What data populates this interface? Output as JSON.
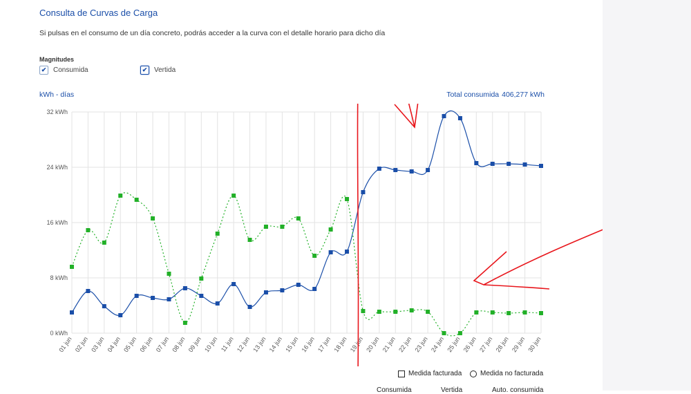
{
  "header": {
    "title": "Consulta de Curvas de Carga",
    "subtitle": "Si pulsas en el consumo de un día concreto, podrás acceder a la curva con el detalle horario para dicho día"
  },
  "magnitudes": {
    "label": "Magnitudes",
    "consumida": "Consumida",
    "vertida": "Vertida"
  },
  "units_label": "kWh - días",
  "total": {
    "label": "Total consumida",
    "value": "406,277 kWh"
  },
  "legend": {
    "facturada": "Medida facturada",
    "no_facturada": "Medida no facturada"
  },
  "bottom_labels": [
    "Consumida",
    "Vertida",
    "Auto. consumida"
  ],
  "colors": {
    "consumida": "#1a4ea8",
    "vertida": "#22b028",
    "grid": "#e3e3e3",
    "annotation": "#e8151b"
  },
  "chart_data": {
    "type": "line",
    "x": [
      "01 jun",
      "02 jun",
      "03 jun",
      "04 jun",
      "05 jun",
      "06 jun",
      "07 jun",
      "08 jun",
      "09 jun",
      "10 jun",
      "11 jun",
      "12 jun",
      "13 jun",
      "14 jun",
      "15 jun",
      "16 jun",
      "17 jun",
      "18 jun",
      "19 jun",
      "20 jun",
      "21 jun",
      "22 jun",
      "23 jun",
      "24 jun",
      "25 jun",
      "26 jun",
      "27 jun",
      "28 jun",
      "29 jun",
      "30 jun"
    ],
    "y_ticks": [
      "0 kWh",
      "8 kWh",
      "16 kWh",
      "24 kWh",
      "32 kWh"
    ],
    "ylim": [
      0,
      32
    ],
    "grid": true,
    "series": [
      {
        "name": "Consumida",
        "values": [
          3.0,
          6.1,
          3.9,
          2.6,
          5.4,
          5.1,
          4.9,
          6.5,
          5.4,
          4.3,
          7.1,
          3.8,
          5.9,
          6.2,
          7.0,
          6.4,
          11.7,
          11.8,
          20.4,
          23.8,
          23.6,
          23.4,
          23.6,
          31.4,
          31.1,
          24.6,
          24.5,
          24.5,
          24.4,
          24.2
        ]
      },
      {
        "name": "Vertida",
        "values": [
          9.6,
          14.9,
          13.1,
          19.9,
          19.3,
          16.6,
          8.6,
          1.5,
          7.9,
          14.4,
          19.9,
          13.5,
          15.4,
          15.4,
          16.6,
          11.2,
          15.0,
          19.4,
          3.2,
          3.1,
          3.1,
          3.3,
          3.1,
          0.0,
          0.0,
          3.0,
          3.0,
          2.9,
          3.0,
          2.9
        ]
      }
    ]
  }
}
